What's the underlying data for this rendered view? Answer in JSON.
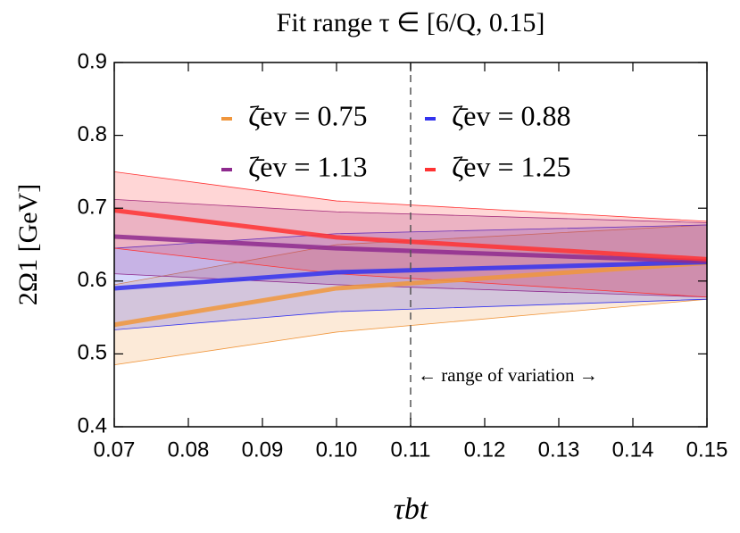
{
  "chart_data": {
    "type": "band-line",
    "title": "Fit range τ ∈ [6/Q, 0.15]",
    "x_label": "τbt",
    "y_label": "2Ω1 [GeV]",
    "annotation": "← range of variation →",
    "vline": 0.11,
    "x": [
      0.07,
      0.1,
      0.15
    ],
    "xlim": [
      0.07,
      0.15
    ],
    "ylim": [
      0.4,
      0.9
    ],
    "xticks": [
      0.07,
      0.08,
      0.09,
      {
        "value": 0.1,
        "label": "0.10"
      },
      0.11,
      0.12,
      0.13,
      0.14,
      0.15
    ],
    "yticks": [
      0.4,
      0.5,
      0.6,
      0.7,
      0.8,
      0.9
    ],
    "series": [
      {
        "name": "ζ̄ev = 0.75",
        "color": "#f0963c",
        "values": [
          0.54,
          0.59,
          0.625
        ],
        "lower": [
          0.485,
          0.53,
          0.575
        ],
        "upper": [
          0.595,
          0.65,
          0.677
        ]
      },
      {
        "name": "ζ̄ev = 0.88",
        "color": "#3333ee",
        "values": [
          0.59,
          0.612,
          0.626
        ],
        "lower": [
          0.533,
          0.558,
          0.575
        ],
        "upper": [
          0.645,
          0.665,
          0.677
        ]
      },
      {
        "name": "ζ̄ev = 1.13",
        "color": "#8e2a8e",
        "values": [
          0.661,
          0.645,
          0.627
        ],
        "lower": [
          0.61,
          0.595,
          0.578
        ],
        "upper": [
          0.712,
          0.695,
          0.68
        ]
      },
      {
        "name": "ζ̄ev = 1.25",
        "color": "#ff3333",
        "values": [
          0.697,
          0.66,
          0.63
        ],
        "lower": [
          0.645,
          0.61,
          0.578
        ],
        "upper": [
          0.75,
          0.71,
          0.682
        ]
      }
    ]
  }
}
